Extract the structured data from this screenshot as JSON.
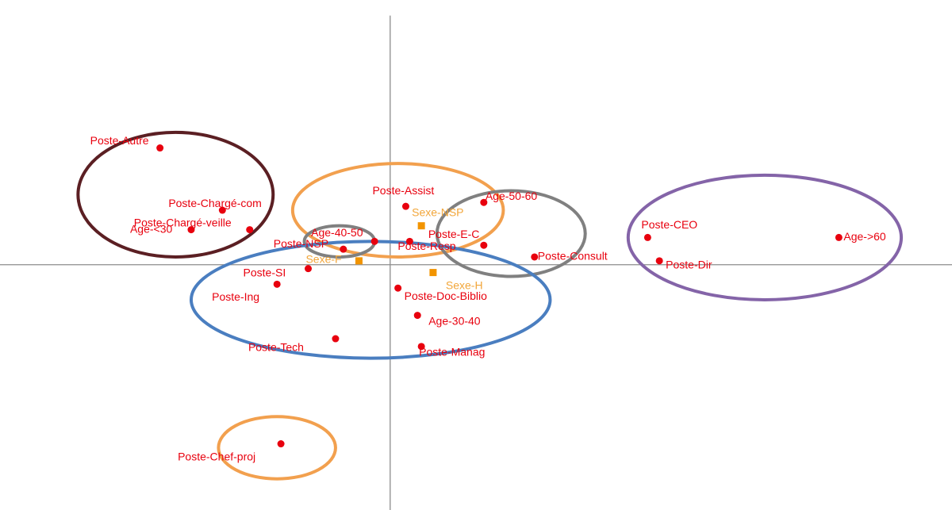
{
  "chart_data": {
    "type": "scatter",
    "title": "",
    "xlabel": "",
    "ylabel": "",
    "grid": false,
    "legend": "none",
    "xlim": [
      -1.0,
      1.44
    ],
    "ylim": [
      -0.63,
      0.68
    ],
    "colors": {
      "modality_point": "#e8000e",
      "sexe_point": "#f29400",
      "sexe_label": "#f2a63a",
      "axis": "#8c8c8c"
    },
    "series": [
      {
        "group": "modalities",
        "points": [
          {
            "label": "Poste-Autre",
            "x": -0.59,
            "y": 0.3
          },
          {
            "label": "Poste-Chargé-com",
            "x": -0.43,
            "y": 0.14
          },
          {
            "label": "Poste-Chargé-veille",
            "x": -0.36,
            "y": 0.09
          },
          {
            "label": "Age-<30",
            "x": -0.51,
            "y": 0.09
          },
          {
            "label": "Age-40-50",
            "x": -0.04,
            "y": 0.06
          },
          {
            "label": "Poste-NSP",
            "x": -0.12,
            "y": 0.04
          },
          {
            "label": "Poste-Assist",
            "x": 0.04,
            "y": 0.15
          },
          {
            "label": "Poste-E-C",
            "x": 0.24,
            "y": 0.05
          },
          {
            "label": "Poste-Resp",
            "x": 0.05,
            "y": 0.06
          },
          {
            "label": "Age-50-60",
            "x": 0.24,
            "y": 0.16
          },
          {
            "label": "Poste-Consult",
            "x": 0.37,
            "y": 0.02
          },
          {
            "label": "Poste-CEO",
            "x": 0.66,
            "y": 0.07
          },
          {
            "label": "Poste-Dir",
            "x": 0.69,
            "y": 0.01
          },
          {
            "label": "Age->60",
            "x": 1.15,
            "y": 0.07
          },
          {
            "label": "Poste-SI",
            "x": -0.21,
            "y": -0.01
          },
          {
            "label": "Poste-Ing",
            "x": -0.29,
            "y": -0.05
          },
          {
            "label": "Poste-Doc-Biblio",
            "x": 0.02,
            "y": -0.06
          },
          {
            "label": "Age-30-40",
            "x": 0.07,
            "y": -0.13
          },
          {
            "label": "Poste-Tech",
            "x": -0.14,
            "y": -0.19
          },
          {
            "label": "Poste-Manag",
            "x": 0.08,
            "y": -0.21
          },
          {
            "label": "Poste-Chef-proj",
            "x": -0.28,
            "y": -0.46
          }
        ]
      },
      {
        "group": "sexe",
        "points": [
          {
            "label": "Sexe-NSP",
            "x": 0.08,
            "y": 0.1
          },
          {
            "label": "Sexe-F",
            "x": -0.08,
            "y": 0.01
          },
          {
            "label": "Sexe-H",
            "x": 0.11,
            "y": -0.02
          }
        ]
      }
    ],
    "annotations": [
      {
        "shape": "ellipse",
        "color": "#5b1f23",
        "cx": -0.55,
        "cy": 0.18,
        "rx": 0.25,
        "ry": 0.16
      },
      {
        "shape": "ellipse",
        "color": "#f2a04e",
        "cx": 0.02,
        "cy": 0.14,
        "rx": 0.27,
        "ry": 0.12
      },
      {
        "shape": "ellipse",
        "color": "#808080",
        "cx": -0.13,
        "cy": 0.06,
        "rx": 0.09,
        "ry": 0.04
      },
      {
        "shape": "ellipse",
        "color": "#808080",
        "cx": 0.31,
        "cy": 0.08,
        "rx": 0.19,
        "ry": 0.11
      },
      {
        "shape": "ellipse",
        "color": "#8464a8",
        "cx": 0.96,
        "cy": 0.07,
        "rx": 0.35,
        "ry": 0.16
      },
      {
        "shape": "ellipse",
        "color": "#4a7ec0",
        "cx": -0.05,
        "cy": -0.09,
        "rx": 0.46,
        "ry": 0.15
      },
      {
        "shape": "ellipse",
        "color": "#f2a04e",
        "cx": -0.29,
        "cy": -0.47,
        "rx": 0.15,
        "ry": 0.08
      }
    ]
  }
}
